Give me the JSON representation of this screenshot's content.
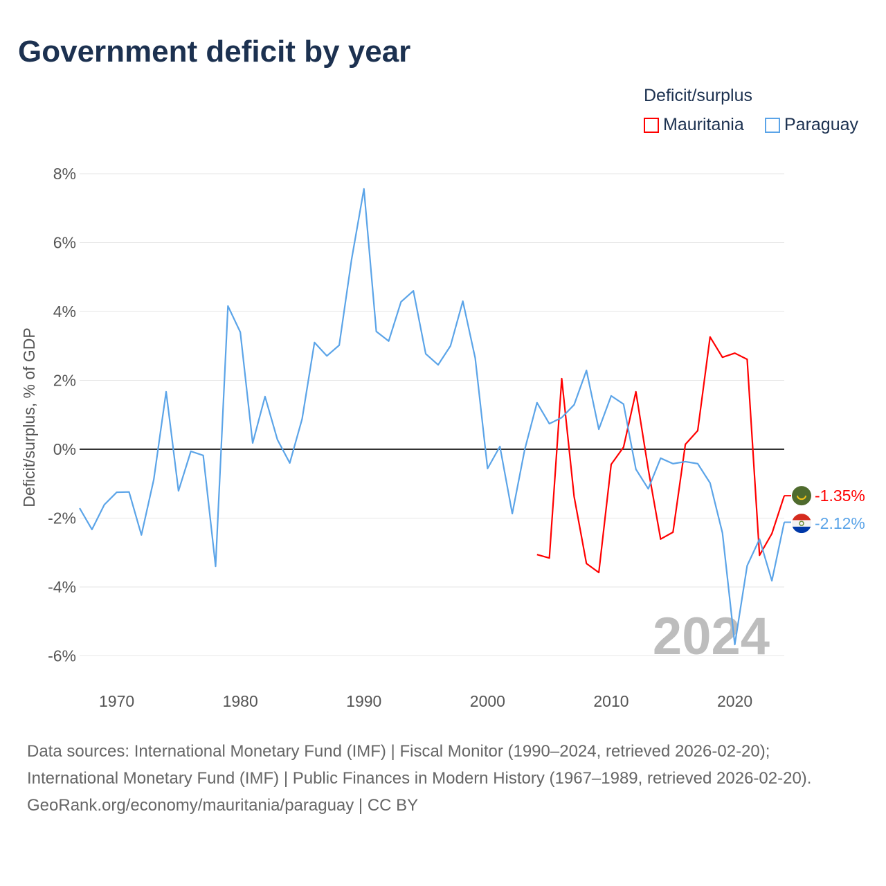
{
  "title": "Government deficit by year",
  "legend": {
    "title": "Deficit/surplus",
    "items": [
      {
        "name": "Mauritania",
        "color": "#ff0000"
      },
      {
        "name": "Paraguay",
        "color": "#5ba4e8"
      }
    ]
  },
  "year_watermark": "2024",
  "sources": {
    "line1": "Data sources: International Monetary Fund (IMF) | Fiscal Monitor (1990–2024, retrieved 2026-02-20); International Monetary Fund (IMF) | Public Finances in Modern History (1967–1989, retrieved 2026-02-20).",
    "line2": "GeoRank.org/economy/mauritania/paraguay | CC BY"
  },
  "chart_data": {
    "type": "line",
    "title": "Government deficit by year",
    "xlabel": "",
    "ylabel": "Deficit/surplus, % of GDP",
    "xlim": [
      1967,
      2024
    ],
    "ylim": [
      -7,
      8.5
    ],
    "yticks": [
      -6,
      -4,
      -2,
      0,
      2,
      4,
      6,
      8
    ],
    "ytick_labels": [
      "-6%",
      "-4%",
      "-2%",
      "0%",
      "2%",
      "4%",
      "6%",
      "8%"
    ],
    "xticks": [
      1970,
      1980,
      1990,
      2000,
      2010,
      2020
    ],
    "xtick_labels": [
      "1970",
      "1980",
      "1990",
      "2000",
      "2010",
      "2020"
    ],
    "grid": true,
    "legend_position": "top-right",
    "series": [
      {
        "name": "Mauritania",
        "color": "#ff0000",
        "end_label": "-1.35%",
        "x": [
          2004,
          2005,
          2006,
          2007,
          2008,
          2009,
          2010,
          2011,
          2012,
          2013,
          2014,
          2015,
          2016,
          2017,
          2018,
          2019,
          2020,
          2021,
          2022,
          2023,
          2024
        ],
        "values": [
          -3.06,
          -3.16,
          2.05,
          -1.37,
          -3.32,
          -3.58,
          -0.44,
          0.06,
          1.67,
          -0.58,
          -2.61,
          -2.41,
          0.14,
          0.54,
          3.26,
          2.67,
          2.79,
          2.61,
          -3.08,
          -2.45,
          -1.35
        ]
      },
      {
        "name": "Paraguay",
        "color": "#5ba4e8",
        "end_label": "-2.12%",
        "x": [
          1967,
          1968,
          1969,
          1970,
          1971,
          1972,
          1973,
          1974,
          1975,
          1976,
          1977,
          1978,
          1979,
          1980,
          1981,
          1982,
          1983,
          1984,
          1985,
          1986,
          1987,
          1988,
          1989,
          1990,
          1991,
          1992,
          1993,
          1994,
          1995,
          1996,
          1997,
          1998,
          1999,
          2000,
          2001,
          2002,
          2003,
          2004,
          2005,
          2006,
          2007,
          2008,
          2009,
          2010,
          2011,
          2012,
          2013,
          2014,
          2015,
          2016,
          2017,
          2018,
          2019,
          2020,
          2021,
          2022,
          2023,
          2024
        ],
        "values": [
          -1.71,
          -2.33,
          -1.61,
          -1.25,
          -1.24,
          -2.49,
          -0.88,
          1.67,
          -1.21,
          -0.06,
          -0.18,
          -3.4,
          4.16,
          3.4,
          0.18,
          1.53,
          0.28,
          -0.4,
          0.88,
          3.1,
          2.71,
          3.02,
          5.51,
          7.56,
          3.42,
          3.14,
          4.28,
          4.6,
          2.77,
          2.45,
          3.0,
          4.3,
          2.65,
          -0.56,
          0.08,
          -1.87,
          -0.02,
          1.35,
          0.74,
          0.92,
          1.29,
          2.29,
          0.58,
          1.55,
          1.31,
          -0.58,
          -1.15,
          -0.26,
          -0.42,
          -0.36,
          -0.42,
          -0.98,
          -2.43,
          -5.67,
          -3.38,
          -2.61,
          -3.82,
          -2.12
        ]
      }
    ]
  }
}
